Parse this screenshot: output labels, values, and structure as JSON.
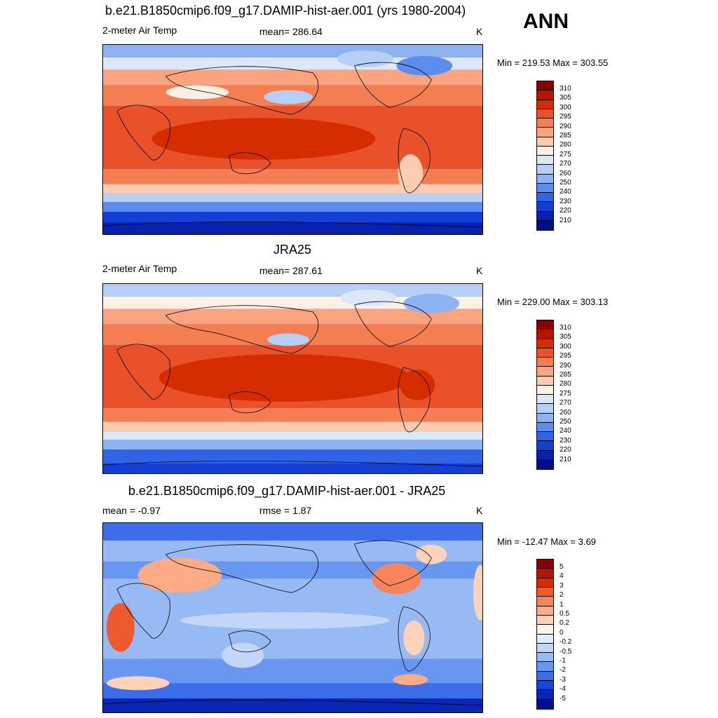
{
  "season": "ANN",
  "panels": [
    {
      "title": "b.e21.B1850cmip6.f09_g17.DAMIP-hist-aer.001 (yrs 1980-2004)",
      "left_label": "2-meter Air Temp",
      "center_label": "mean= 286.64",
      "units": "K",
      "minmax": "Min = 219.53 Max = 303.55",
      "colorbar_labels": [
        "310",
        "305",
        "300",
        "295",
        "290",
        "285",
        "280",
        "275",
        "270",
        "260",
        "250",
        "240",
        "230",
        "220",
        "210"
      ],
      "colorbar_colors": [
        "#8a0000",
        "#b71400",
        "#d62d00",
        "#e8512a",
        "#f47e52",
        "#f9a47f",
        "#fccbb0",
        "#fff0e4",
        "#dbe8fa",
        "#b5cff7",
        "#8eb3f3",
        "#5c8cee",
        "#2f63e8",
        "#1240d6",
        "#0822b0",
        "#000f88"
      ],
      "field": "temp_model"
    },
    {
      "title": "JRA25",
      "left_label": "2-meter Air Temp",
      "center_label": "mean= 287.61",
      "units": "K",
      "minmax": "Min = 229.00 Max = 303.13",
      "colorbar_labels": [
        "310",
        "305",
        "300",
        "295",
        "290",
        "285",
        "280",
        "275",
        "270",
        "260",
        "250",
        "240",
        "230",
        "220",
        "210"
      ],
      "colorbar_colors": [
        "#8a0000",
        "#b71400",
        "#d62d00",
        "#e8512a",
        "#f47e52",
        "#f9a47f",
        "#fccbb0",
        "#fff0e4",
        "#dbe8fa",
        "#b5cff7",
        "#8eb3f3",
        "#5c8cee",
        "#2f63e8",
        "#1240d6",
        "#0822b0",
        "#000f88"
      ],
      "field": "temp_obs"
    },
    {
      "title": "b.e21.B1850cmip6.f09_g17.DAMIP-hist-aer.001 - JRA25",
      "left_label": "mean =  -0.97",
      "center_label": "rmse =    1.87",
      "units": "K",
      "minmax": "Min = -12.47 Max =   3.69",
      "colorbar_labels": [
        "5",
        "4",
        "3",
        "2",
        "1",
        "0.5",
        "0.2",
        "0",
        "-0.2",
        "-0.5",
        "-1",
        "-2",
        "-3",
        "-4",
        "-5"
      ],
      "colorbar_colors": [
        "#8a0000",
        "#b71400",
        "#d62d00",
        "#ec5a2d",
        "#f7845a",
        "#fbab85",
        "#fdd2b9",
        "#fff4ea",
        "#e2ecfb",
        "#c1d6f8",
        "#98baf4",
        "#6996ef",
        "#3b6de9",
        "#1844d8",
        "#0a26b5",
        "#001090"
      ],
      "field": "diff"
    }
  ]
}
